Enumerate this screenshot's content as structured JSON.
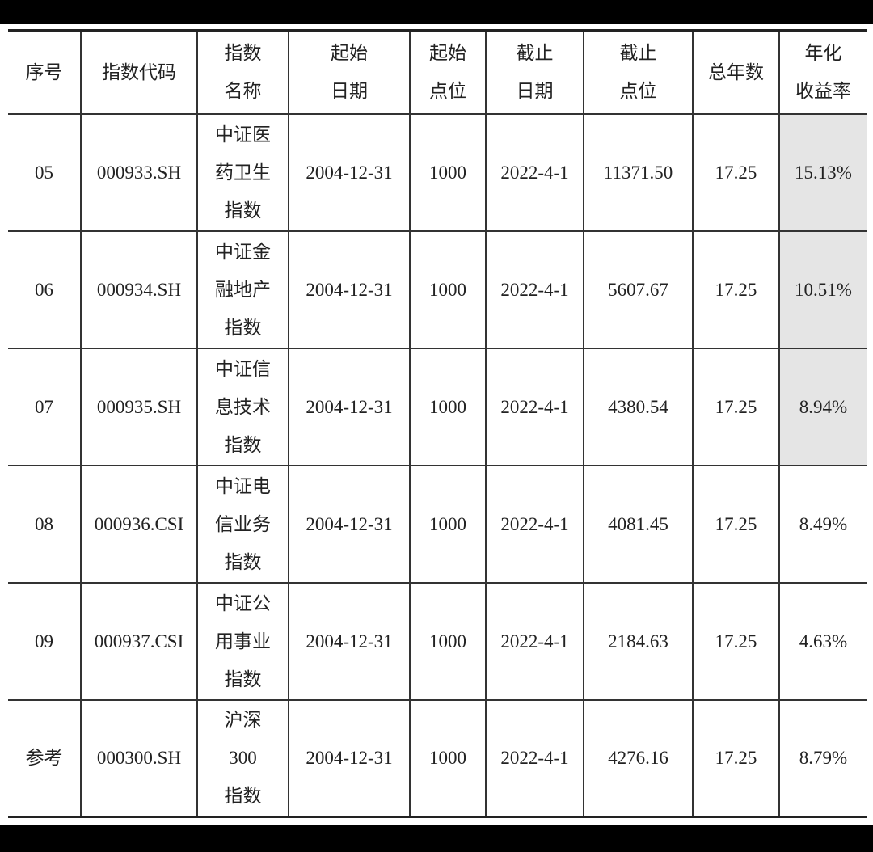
{
  "headers": [
    "序号",
    "指数代码",
    "指数\n名称",
    "起始\n日期",
    "起始\n点位",
    "截止\n日期",
    "截止\n点位",
    "总年数",
    "年化\n收益率"
  ],
  "rows": [
    {
      "no": "05",
      "code": "000933.SH",
      "name": "中证医\n药卫生\n指数",
      "start_date": "2004-12-31",
      "start_pt": "1000",
      "end_date": "2022-4-1",
      "end_pt": "11371.50",
      "years": "17.25",
      "cagr": "15.13%",
      "highlight": true
    },
    {
      "no": "06",
      "code": "000934.SH",
      "name": "中证金\n融地产\n指数",
      "start_date": "2004-12-31",
      "start_pt": "1000",
      "end_date": "2022-4-1",
      "end_pt": "5607.67",
      "years": "17.25",
      "cagr": "10.51%",
      "highlight": true
    },
    {
      "no": "07",
      "code": "000935.SH",
      "name": "中证信\n息技术\n指数",
      "start_date": "2004-12-31",
      "start_pt": "1000",
      "end_date": "2022-4-1",
      "end_pt": "4380.54",
      "years": "17.25",
      "cagr": "8.94%",
      "highlight": true
    },
    {
      "no": "08",
      "code": "000936.CSI",
      "name": "中证电\n信业务\n指数",
      "start_date": "2004-12-31",
      "start_pt": "1000",
      "end_date": "2022-4-1",
      "end_pt": "4081.45",
      "years": "17.25",
      "cagr": "8.49%",
      "highlight": false
    },
    {
      "no": "09",
      "code": "000937.CSI",
      "name": "中证公\n用事业\n指数",
      "start_date": "2004-12-31",
      "start_pt": "1000",
      "end_date": "2022-4-1",
      "end_pt": "2184.63",
      "years": "17.25",
      "cagr": "4.63%",
      "highlight": false
    },
    {
      "no": "参考",
      "code": "000300.SH",
      "name": "沪深\n300\n指数",
      "start_date": "2004-12-31",
      "start_pt": "1000",
      "end_date": "2022-4-1",
      "end_pt": "4276.16",
      "years": "17.25",
      "cagr": "8.79%",
      "highlight": false
    }
  ],
  "colors": {
    "highlight": "#e5e5e5"
  }
}
